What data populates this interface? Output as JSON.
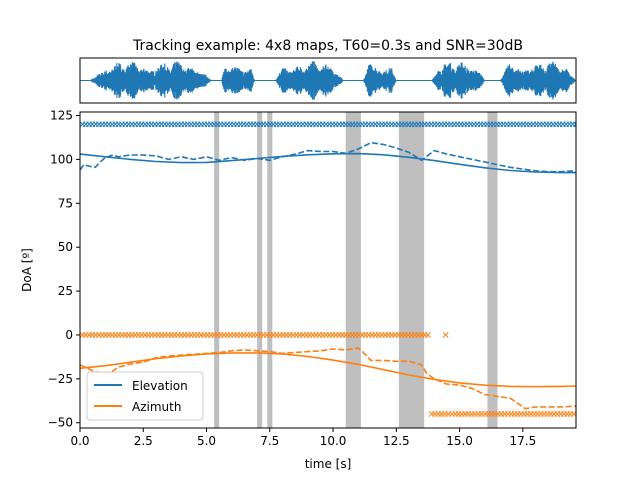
{
  "chart_data": {
    "type": "line",
    "title": "Tracking example: 4x8 maps, T60=0.3s and SNR=30dB",
    "xlabel": "time [s]",
    "ylabel": "DoA [º]",
    "xlim": [
      0,
      19.6
    ],
    "ylim": [
      -53,
      127
    ],
    "x_ticks": [
      0,
      2.5,
      5,
      7.5,
      10,
      12.5,
      15,
      17.5
    ],
    "x_tick_labels": [
      "0.0",
      "2.5",
      "5.0",
      "7.5",
      "10.0",
      "12.5",
      "15.0",
      "17.5"
    ],
    "y_ticks": [
      -50,
      -25,
      0,
      25,
      50,
      75,
      100,
      125
    ],
    "y_tick_labels": [
      "−50",
      "−25",
      "0",
      "25",
      "50",
      "75",
      "100",
      "125"
    ],
    "colors": {
      "elevation": "#1f77b4",
      "azimuth": "#ff7f0e",
      "silence": "#bfbfbf",
      "waveform": "#1f77b4"
    },
    "legend": {
      "position": "lower-left",
      "entries": [
        {
          "label": "Elevation",
          "color": "#1f77b4"
        },
        {
          "label": "Azimuth",
          "color": "#ff7f0e"
        }
      ]
    },
    "silence_intervals": [
      [
        5.3,
        5.5
      ],
      [
        7.0,
        7.2
      ],
      [
        7.4,
        7.6
      ],
      [
        10.5,
        11.1
      ],
      [
        12.6,
        13.6
      ],
      [
        16.1,
        16.5
      ]
    ],
    "waveform_segments": [
      [
        0.4,
        5.2
      ],
      [
        5.6,
        6.9
      ],
      [
        7.7,
        10.4
      ],
      [
        11.2,
        12.5
      ],
      [
        13.9,
        16.0
      ],
      [
        16.6,
        19.6
      ]
    ],
    "series": [
      {
        "name": "Elevation",
        "style": "solid",
        "color": "#1f77b4",
        "x": [
          0,
          1,
          2,
          3,
          4,
          5,
          6,
          7,
          8,
          9,
          10,
          11,
          12,
          13,
          14,
          15,
          16,
          17,
          18,
          19,
          19.6
        ],
        "y": [
          103,
          101.5,
          100,
          98.8,
          98.2,
          98.3,
          99.3,
          100.5,
          101.7,
          102.6,
          103.2,
          103.3,
          102.6,
          101.2,
          99.3,
          97.2,
          95.2,
          93.7,
          92.8,
          92.5,
          92.5
        ]
      },
      {
        "name": "Elevation estimate",
        "style": "dashed",
        "color": "#1f77b4",
        "x": [
          0,
          0.15,
          0.4,
          0.6,
          0.8,
          1.0,
          1.3,
          1.5,
          2.0,
          2.5,
          3.0,
          3.5,
          4.0,
          4.5,
          5.0,
          5.5,
          6.0,
          6.5,
          7.0,
          7.5,
          8.0,
          8.5,
          9.0,
          9.5,
          10.0,
          10.5,
          11.0,
          11.5,
          12.0,
          12.5,
          13.0,
          13.5,
          14.0,
          14.5,
          15.0,
          15.5,
          16.0,
          16.5,
          17.0,
          17.5,
          18.0,
          18.5,
          19.0,
          19.6
        ],
        "y": [
          94,
          97,
          96,
          95.5,
          98.5,
          101,
          102.5,
          101.5,
          102.5,
          102.5,
          102,
          100,
          101.5,
          100,
          101.5,
          99.5,
          101,
          99.5,
          100.5,
          99.5,
          101.5,
          103,
          105,
          104.5,
          104.5,
          103.5,
          106,
          109.5,
          108.5,
          106.5,
          104,
          99.5,
          105,
          103,
          101.5,
          100,
          98.5,
          97,
          95.5,
          94.5,
          93.5,
          93,
          93,
          93.5
        ]
      },
      {
        "name": "Azimuth",
        "style": "solid",
        "color": "#ff7f0e",
        "x": [
          0,
          1,
          2,
          3,
          4,
          5,
          6,
          7,
          8,
          9,
          10,
          11,
          12,
          13,
          14,
          15,
          16,
          17,
          18,
          19,
          19.6
        ],
        "y": [
          -19,
          -17.5,
          -15.5,
          -13.5,
          -12,
          -10.8,
          -10.2,
          -10.2,
          -10.8,
          -12.3,
          -14.3,
          -16.8,
          -19.8,
          -22.8,
          -25.3,
          -27.3,
          -28.6,
          -29.3,
          -29.5,
          -29.3,
          -29.1
        ]
      },
      {
        "name": "Azimuth estimate",
        "style": "dashed",
        "color": "#ff7f0e",
        "x": [
          0,
          0.3,
          0.6,
          0.9,
          1.2,
          1.5,
          2.0,
          2.5,
          3.0,
          3.5,
          4.0,
          4.5,
          5.0,
          5.5,
          6.0,
          6.5,
          7.0,
          7.5,
          8.0,
          8.5,
          9.0,
          9.5,
          10.0,
          10.5,
          11.0,
          11.2,
          11.5,
          12.0,
          12.5,
          13.0,
          13.5,
          13.7,
          14.0,
          14.5,
          15.0,
          15.5,
          16.0,
          16.5,
          17.0,
          17.3,
          17.6,
          18.0,
          18.5,
          19.0,
          19.6
        ],
        "y": [
          -17,
          -19,
          -21,
          -21.5,
          -21.5,
          -18.5,
          -16.5,
          -15.5,
          -13,
          -12,
          -11.5,
          -11,
          -10.5,
          -10,
          -9,
          -8.5,
          -9,
          -9.5,
          -10.5,
          -10,
          -9.5,
          -9,
          -8,
          -8.5,
          -7.5,
          -10,
          -14.5,
          -14.5,
          -15,
          -15,
          -17,
          -22,
          -25,
          -28,
          -28.5,
          -30.5,
          -34,
          -35,
          -36,
          -39,
          -42,
          -41,
          -41,
          -41,
          -40.5
        ]
      },
      {
        "name": "Elevation observations",
        "style": "x-markers",
        "color": "#1f77b4",
        "segments": [
          [
            0.1,
            19.6
          ]
        ],
        "value": 120
      },
      {
        "name": "Azimuth observations",
        "style": "x-markers",
        "color": "#ff7f0e",
        "segments": [
          [
            0.1,
            13.75
          ]
        ],
        "value": 0,
        "extra_points": [
          [
            14.45,
            0
          ]
        ]
      },
      {
        "name": "Azimuth observations (wrapped)",
        "style": "x-markers",
        "color": "#ff7f0e",
        "segments": [
          [
            13.9,
            14.6
          ],
          [
            14.7,
            19.6
          ]
        ],
        "value": -45
      }
    ]
  }
}
